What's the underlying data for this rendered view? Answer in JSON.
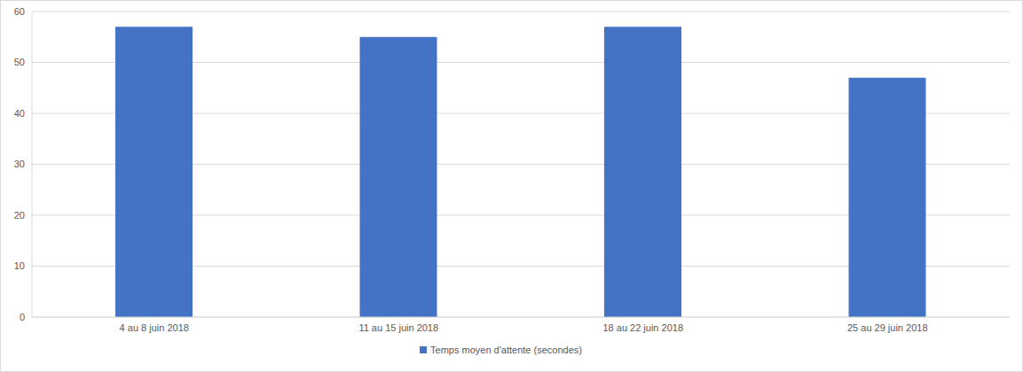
{
  "chart_data": {
    "type": "bar",
    "categories": [
      "4 au 8 juin 2018",
      "11 au 15 juin 2018",
      "18 au 22 juin 2018",
      "25 au 29 juin 2018"
    ],
    "series": [
      {
        "name": "Temps moyen d'attente (secondes)",
        "color": "#4472c4",
        "values": [
          57,
          55,
          57,
          47
        ]
      }
    ],
    "ylim": [
      0,
      60
    ],
    "yticks": [
      0,
      10,
      20,
      30,
      40,
      50,
      60
    ],
    "grid": true,
    "legend": "bottom"
  }
}
